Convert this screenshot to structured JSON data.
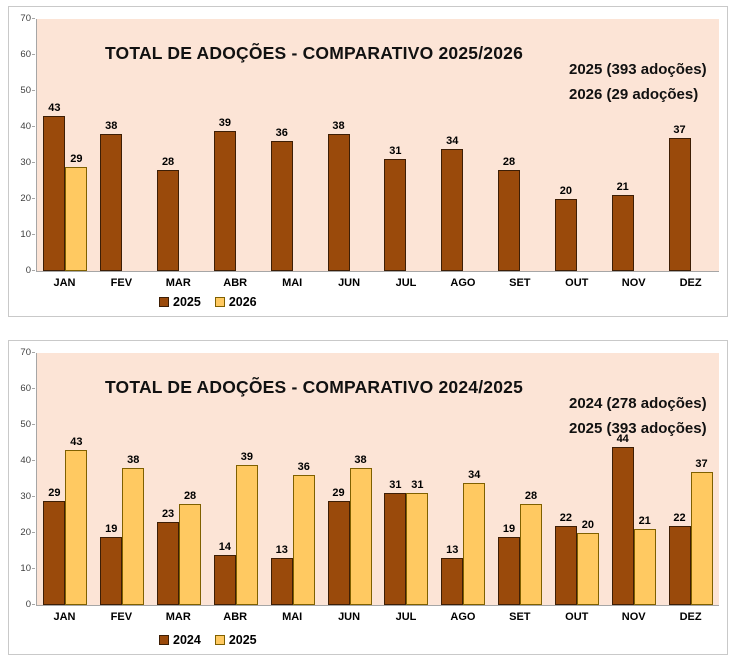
{
  "chart_data": [
    {
      "type": "bar",
      "title": "TOTAL DE ADOÇÕES - COMPARATIVO 2025/2026",
      "annotation": [
        "2025 (393 adoções)",
        "2026 (29 adoções)"
      ],
      "categories": [
        "JAN",
        "FEV",
        "MAR",
        "ABR",
        "MAI",
        "JUN",
        "JUL",
        "AGO",
        "SET",
        "OUT",
        "NOV",
        "DEZ"
      ],
      "series": [
        {
          "name": "2025",
          "color": "#9A4A0B",
          "border": "#3D1E05",
          "values": [
            43,
            38,
            28,
            39,
            36,
            38,
            31,
            34,
            28,
            20,
            21,
            37
          ]
        },
        {
          "name": "2026",
          "color": "#FFC961",
          "border": "#7F6000",
          "values": [
            29,
            null,
            null,
            null,
            null,
            null,
            null,
            null,
            null,
            null,
            null,
            null
          ]
        }
      ],
      "ylim": [
        0,
        70
      ],
      "yticks": [
        0,
        10,
        20,
        30,
        40,
        50,
        60,
        70
      ],
      "grid": false,
      "legend_position": "bottom",
      "plot_bg": "#FCE4D6"
    },
    {
      "type": "bar",
      "title": "TOTAL DE ADOÇÕES - COMPARATIVO 2024/2025",
      "annotation": [
        "2024 (278 adoções)",
        "2025 (393 adoções)"
      ],
      "categories": [
        "JAN",
        "FEV",
        "MAR",
        "ABR",
        "MAI",
        "JUN",
        "JUL",
        "AGO",
        "SET",
        "OUT",
        "NOV",
        "DEZ"
      ],
      "series": [
        {
          "name": "2024",
          "color": "#9A4A0B",
          "border": "#3D1E05",
          "values": [
            29,
            19,
            23,
            14,
            13,
            29,
            31,
            13,
            19,
            22,
            44,
            22
          ]
        },
        {
          "name": "2025",
          "color": "#FFC961",
          "border": "#7F6000",
          "values": [
            43,
            38,
            28,
            39,
            36,
            38,
            31,
            34,
            28,
            20,
            21,
            37
          ]
        }
      ],
      "ylim": [
        0,
        70
      ],
      "yticks": [
        0,
        10,
        20,
        30,
        40,
        50,
        60,
        70
      ],
      "grid": false,
      "legend_position": "bottom",
      "plot_bg": "#FCE4D6"
    }
  ]
}
